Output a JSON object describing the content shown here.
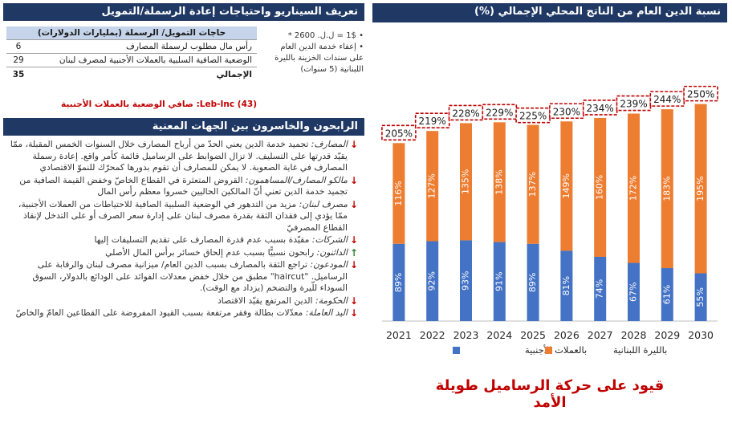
{
  "scenario": {
    "title": "تعريف السيناريو واحتياجات إعادة الرسملة/التمويل",
    "table_header": "حاجات التمويل/ الرسملة (بمليارات الدولارات)",
    "rows": [
      {
        "label": "رأس مال مطلوب لرسملة المصارف",
        "value": "6"
      },
      {
        "label": "الوضعية الصافية السلبية بالعملات الأجنبية لمصرف لبنان",
        "value": "29"
      }
    ],
    "total_label": "الإجمالي",
    "total_value": "35",
    "notes_rate": "• 1$ = ل.ل. 2600 *",
    "notes_service": "• إعفاء خدمة الدين العام على سندات الخزينة بالليرة اللبنانية (5 سنوات)",
    "leb_inc": "(43) Leb-Inc: صافي الوضعية بالعملات الأجنبية"
  },
  "winners": {
    "title": "الرابحون والخاسرون بين الجهات المعنية",
    "items": [
      {
        "dir": "down",
        "key": "المصارف:",
        "text": "تجميد خدمة الدين يعني الحدّ من أرباح المصارف خلال السنوات الخمس المقبلة، ممّا يقيّد قدرتها على التسليف. لا تزال الضوابط على الرساميل قائمة كأمر واقع. إعادة رسملة المصارف في غاية الصعوبة. لا يمكن للمصارف أن تقوم بدورها كمحرّك للنموّ الاقتصادي"
      },
      {
        "dir": "down",
        "key": "مالكو المصارف/المساهمون:",
        "text": "القروض المتعثرة في القطاع الخاصّ وخفض القيمة الصافية من تجميد خدمة الدين تعني أنّ المالكين الحاليين خسروا معظم رأس المال"
      },
      {
        "dir": "down",
        "key": "مصرف لبنان:",
        "text": "مزيد من التدهور في الوضعية السلبية الصافية للاحتياطات من العملات الأجنبية، ممّا يؤدي إلى فقدان الثقة بقدرة مصرف لبنان على إدارة سعر الصرف أو على التدخل لإنقاذ القطاع المصرفيّ"
      },
      {
        "dir": "down",
        "key": "الشركات:",
        "text": "مقيّدة بسبب عدم قدرة المصارف على تقديم التسليفات إليها"
      },
      {
        "dir": "up",
        "key": "الدائنون:",
        "text": "رابحون نسبيًّا بسبب عدم إلحاق خسائر برأس المال الأصلي"
      },
      {
        "dir": "down",
        "key": "المودعون:",
        "text": "تراجع الثقة بالمصارف بسبب الدين العام/ ميزانية مصرف لبنان والرقابة على الرساميل. \"haircut\" مطبق من خلال خفض معدلات الفوائد على الودائع بالدولار، السوق السوداء للّيرة والتضخم (يزداد مع الوقت)."
      },
      {
        "dir": "down",
        "key": "الحكومة:",
        "text": "الدين المرتفع يقيّد الاقتصاد"
      },
      {
        "dir": "down",
        "key": "اليد العاملة:",
        "text": "معدّلات بطالة وفقر مرتفعة بسبب القيود المفروضة على القطاعين العامّ والخاصّ"
      }
    ]
  },
  "debt": {
    "title": "نسبة الدين العام من الناتج المحلي الإجمالي (%)",
    "caption": "قيود على حركة الرساميل طويلة الأمد"
  },
  "chart_data": {
    "type": "bar",
    "stacked": true,
    "categories": [
      "2021",
      "2022",
      "2023",
      "2024",
      "2025",
      "2026",
      "2027",
      "2028",
      "2029",
      "2030"
    ],
    "series": [
      {
        "name": "بالعملات الأجنبية",
        "values": [
          89,
          92,
          93,
          91,
          89,
          81,
          74,
          67,
          61,
          55
        ],
        "labels": [
          "89%",
          "92%",
          "93%",
          "91%",
          "89%",
          "81%",
          "74%",
          "67%",
          "61%",
          "55%"
        ],
        "color": "#4472c4"
      },
      {
        "name": "بالليرة اللبنانية",
        "values": [
          116,
          127,
          135,
          138,
          137,
          149,
          160,
          172,
          183,
          195
        ],
        "labels": [
          "116%",
          "127%",
          "135%",
          "138%",
          "137%",
          "149%",
          "160%",
          "172%",
          "183%",
          "195%"
        ],
        "color": "#ed7d31"
      }
    ],
    "totals": [
      205,
      219,
      228,
      229,
      225,
      230,
      234,
      239,
      244,
      250
    ],
    "total_labels": [
      "205%",
      "219%",
      "228%",
      "229%",
      "225%",
      "230%",
      "234%",
      "239%",
      "244%",
      "250%"
    ],
    "ylim": [
      0,
      270
    ],
    "grid": false,
    "legend": "bottom",
    "total_box_color": "#c00000"
  }
}
